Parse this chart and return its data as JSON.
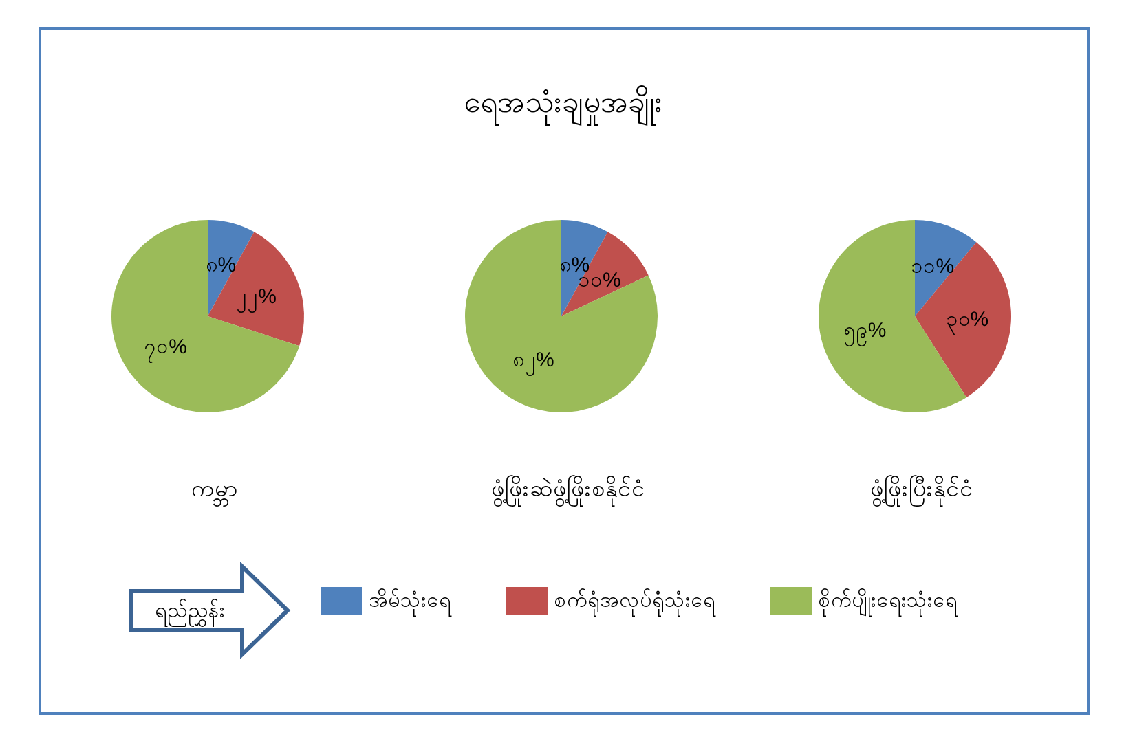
{
  "chart_data": [
    {
      "type": "pie",
      "subtitle": "ကမ္ဘာ",
      "categories": [
        "အိမ်သုံးရေ",
        "စက်ရုံအလုပ်ရုံသုံးရေ",
        "စိုက်ပျိုးရေးသုံးရေ"
      ],
      "values": [
        8,
        22,
        70
      ],
      "value_labels": [
        "၈%",
        "၂၂%",
        "၇၀%"
      ],
      "colors": [
        "#4f81bd",
        "#c0504d",
        "#9bbb59"
      ],
      "legend": "bottom",
      "legend_title": "ရည်ညွှန်း"
    },
    {
      "type": "pie",
      "title": "ရေအသုံးချမှုအချိုး",
      "subtitle": "ဖွံ့ဖြိုးဆဲဖွံ့ဖြိုးစနိုင်ငံ",
      "categories": [
        null,
        null,
        null
      ],
      "values": [
        8,
        10,
        82
      ],
      "value_labels": [
        "၈%",
        "၁၀%",
        "၈၂%"
      ],
      "colors": [
        "#4f81bd",
        "#c0504d",
        "#9bbb59"
      ]
    },
    {
      "type": "pie",
      "subtitle": "ဖွံ့ဖြိုးပြီးနိုင်ငံ",
      "categories": [
        null,
        null,
        null
      ],
      "values": [
        11,
        30,
        59
      ],
      "value_labels": [
        "၁၁%",
        "၃၀%",
        "၅၉%"
      ],
      "colors": [
        "#4f81bd",
        "#c0504d",
        "#9bbb59"
      ]
    }
  ]
}
